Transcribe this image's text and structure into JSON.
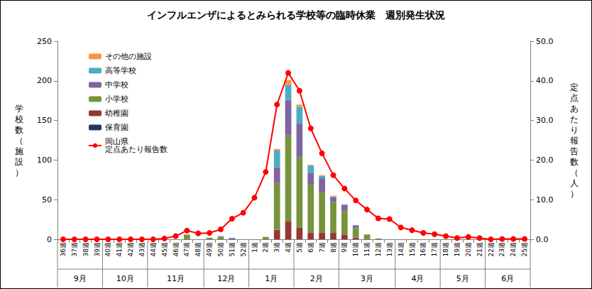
{
  "chart_data": {
    "type": "bar",
    "title": "インフルエンザによるとみられる学校等の臨時休業　週別発生状況",
    "y_label": "学校数（施設）",
    "y2_label": "定点あたり報告数（人）",
    "categories": [
      "36週",
      "37週",
      "38週",
      "39週",
      "40週",
      "41週",
      "42週",
      "43週",
      "44週",
      "45週",
      "46週",
      "47週",
      "48週",
      "49週",
      "50週",
      "51週",
      "52週",
      "1週",
      "2週",
      "3週",
      "4週",
      "5週",
      "6週",
      "7週",
      "8週",
      "9週",
      "10週",
      "11週",
      "12週",
      "13週",
      "14週",
      "15週",
      "16週",
      "17週",
      "18週",
      "19週",
      "20週",
      "21週",
      "22週",
      "23週",
      "24週",
      "25週"
    ],
    "x_groups": [
      {
        "label": "9月",
        "from": "36週",
        "to": "39週"
      },
      {
        "label": "10月",
        "from": "40週",
        "to": "43週"
      },
      {
        "label": "11月",
        "from": "44週",
        "to": "48週"
      },
      {
        "label": "12月",
        "from": "49週",
        "to": "52週"
      },
      {
        "label": "1月",
        "from": "1週",
        "to": "4週"
      },
      {
        "label": "2月",
        "from": "5週",
        "to": "8週"
      },
      {
        "label": "3月",
        "from": "9週",
        "to": "13週"
      },
      {
        "label": "4月",
        "from": "14週",
        "to": "17週"
      },
      {
        "label": "5月",
        "from": "18週",
        "to": "21週"
      },
      {
        "label": "6月",
        "from": "22週",
        "to": "25週"
      }
    ],
    "stacked": true,
    "grid": false,
    "legend": "top-left",
    "ylim": [
      0,
      250
    ],
    "yticks": [
      0,
      50,
      100,
      150,
      200,
      250
    ],
    "y2lim": [
      0,
      50
    ],
    "y2ticks": [
      {
        "value": 0,
        "label": "0.0"
      },
      {
        "value": 10,
        "label": "10.0"
      },
      {
        "value": 20,
        "label": "20.0"
      },
      {
        "value": 30,
        "label": "30.0"
      },
      {
        "value": 40,
        "label": "40.0"
      },
      {
        "value": 50,
        "label": "50.0"
      }
    ],
    "series": [
      {
        "name": "その他の施設",
        "type": "bar",
        "color": "#f79646",
        "values": [
          0,
          0,
          0,
          0,
          0,
          0,
          0,
          0,
          0,
          0,
          0,
          0,
          0,
          0,
          0,
          0,
          0,
          0,
          0,
          2,
          6,
          3,
          1,
          1,
          1,
          0,
          0,
          0,
          0,
          0,
          0,
          0,
          0,
          0,
          0,
          0,
          0,
          0,
          0,
          0,
          0,
          0
        ]
      },
      {
        "name": "高等学校",
        "type": "bar",
        "color": "#4bacc6",
        "values": [
          0,
          0,
          0,
          0,
          0,
          0,
          0,
          0,
          0,
          0,
          0,
          0,
          0,
          0,
          0,
          1,
          0,
          0,
          0,
          21,
          19,
          21,
          9,
          3,
          1,
          1,
          1,
          0,
          0,
          0,
          0,
          0,
          0,
          0,
          0,
          0,
          0,
          0,
          0,
          0,
          0,
          0
        ]
      },
      {
        "name": "中学校",
        "type": "bar",
        "color": "#8064a2",
        "values": [
          0,
          0,
          0,
          0,
          0,
          0,
          0,
          0,
          0,
          0,
          0,
          0,
          0,
          0,
          1,
          1,
          0,
          0,
          0,
          20,
          45,
          42,
          15,
          17,
          6,
          7,
          3,
          0,
          0,
          0,
          0,
          0,
          0,
          0,
          0,
          0,
          0,
          0,
          0,
          0,
          0,
          0
        ]
      },
      {
        "name": "小学校",
        "type": "bar",
        "color": "#77933c",
        "values": [
          0,
          0,
          0,
          0,
          0,
          0,
          0,
          0,
          0,
          0,
          0,
          6,
          0,
          2,
          3,
          0,
          0,
          0,
          3,
          59,
          108,
          89,
          61,
          52,
          39,
          30,
          12,
          6,
          1,
          0,
          0,
          0,
          0,
          0,
          0,
          0,
          0,
          0,
          0,
          0,
          0,
          0
        ]
      },
      {
        "name": "幼稚園",
        "type": "bar",
        "color": "#953735",
        "values": [
          0,
          0,
          0,
          0,
          0,
          0,
          0,
          0,
          0,
          0,
          0,
          0,
          0,
          0,
          0,
          0,
          0,
          0,
          0,
          12,
          23,
          15,
          8,
          8,
          8,
          6,
          2,
          0,
          0,
          0,
          0,
          0,
          0,
          0,
          0,
          0,
          0,
          0,
          0,
          0,
          0,
          0
        ]
      },
      {
        "name": "保育園",
        "type": "bar",
        "color": "#1f3864",
        "values": [
          0,
          0,
          0,
          0,
          0,
          0,
          0,
          0,
          0,
          0,
          0,
          0,
          0,
          0,
          0,
          0,
          0,
          0,
          0,
          0,
          0,
          0,
          0,
          0,
          0,
          0,
          0,
          0,
          0,
          0,
          0,
          0,
          0,
          0,
          0,
          0,
          0,
          0,
          0,
          0,
          0,
          0
        ]
      },
      {
        "name": "岡山県\n定点あたり報告数",
        "type": "line",
        "axis": "y2",
        "color": "#ff0000",
        "marker": "circle",
        "line_style": "solid",
        "values": [
          0,
          0,
          0,
          0,
          0,
          0,
          0,
          0,
          0,
          0.2,
          0.8,
          2.2,
          1.5,
          1.6,
          2.5,
          5.2,
          6.7,
          10.5,
          17.0,
          34.0,
          42.0,
          37.5,
          28.0,
          21.7,
          16.2,
          12.8,
          9.8,
          7.5,
          5.3,
          5.1,
          3.0,
          2.3,
          1.6,
          1.3,
          0.8,
          0.3,
          0.6,
          0.3,
          0.0,
          0.1,
          0.1,
          0.1
        ]
      }
    ]
  }
}
